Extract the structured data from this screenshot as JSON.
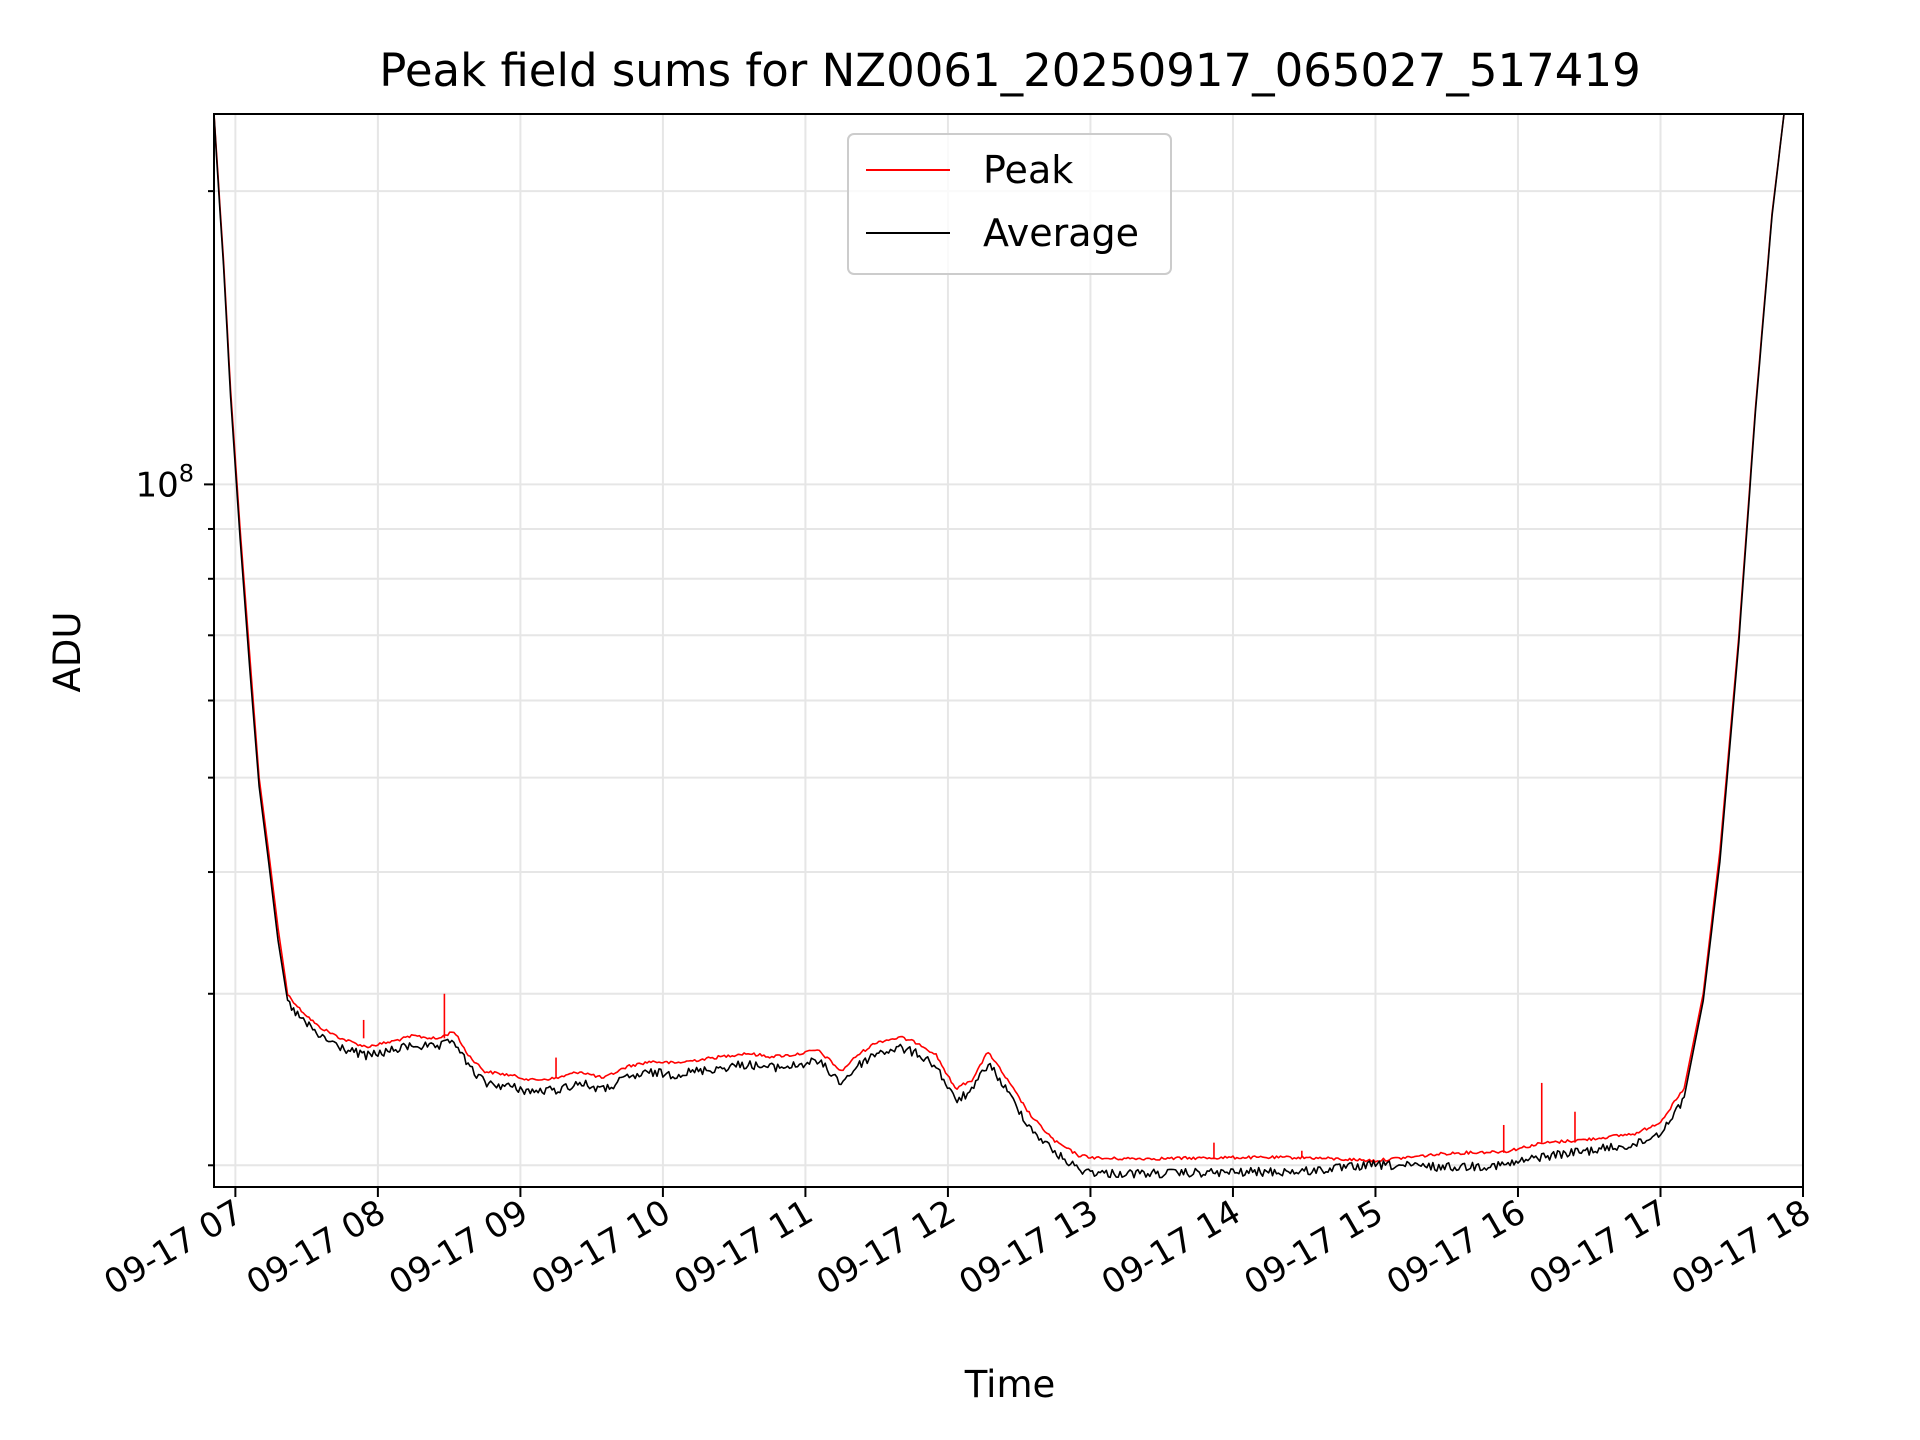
{
  "chart_data": {
    "type": "line",
    "title": "Peak field sums for NZ0061_20250917_065027_517419",
    "xlabel": "Time",
    "ylabel": "ADU",
    "yscale": "log",
    "grid": true,
    "legend_position": "top-center",
    "xlim": [
      "2025-09-17T06:51",
      "2025-09-17T18:00"
    ],
    "ylim": [
      19000000,
      240000000
    ],
    "x_ticks": [
      "09-17 07",
      "09-17 08",
      "09-17 09",
      "09-17 10",
      "09-17 11",
      "09-17 12",
      "09-17 13",
      "09-17 14",
      "09-17 15",
      "09-17 16",
      "09-17 17",
      "09-17 18"
    ],
    "y_ticks": [
      {
        "value": 100000000,
        "base": "10",
        "exponent": "8"
      }
    ],
    "series": [
      {
        "name": "Peak",
        "color": "#ff0000",
        "points": [
          [
            "2025-09-17T06:51",
            240000000
          ],
          [
            "2025-09-17T06:52",
            220000000
          ],
          [
            "2025-09-17T06:55",
            170000000
          ],
          [
            "2025-09-17T06:58",
            125000000
          ],
          [
            "2025-09-17T07:02",
            90000000
          ],
          [
            "2025-09-17T07:06",
            67000000
          ],
          [
            "2025-09-17T07:10",
            50000000
          ],
          [
            "2025-09-17T07:14",
            42000000
          ],
          [
            "2025-09-17T07:18",
            35000000
          ],
          [
            "2025-09-17T07:22",
            30000000
          ],
          [
            "2025-09-17T07:27",
            29000000
          ],
          [
            "2025-09-17T07:35",
            27800000
          ],
          [
            "2025-09-17T07:45",
            27000000
          ],
          [
            "2025-09-17T07:55",
            26500000
          ],
          [
            "2025-09-17T08:05",
            26800000
          ],
          [
            "2025-09-17T08:15",
            27200000
          ],
          [
            "2025-09-17T08:25",
            27000000
          ],
          [
            "2025-09-17T08:32",
            27500000
          ],
          [
            "2025-09-17T08:38",
            26000000
          ],
          [
            "2025-09-17T08:45",
            25000000
          ],
          [
            "2025-09-17T08:55",
            24800000
          ],
          [
            "2025-09-17T09:05",
            24500000
          ],
          [
            "2025-09-17T09:15",
            24600000
          ],
          [
            "2025-09-17T09:25",
            25000000
          ],
          [
            "2025-09-17T09:35",
            24600000
          ],
          [
            "2025-09-17T09:45",
            25300000
          ],
          [
            "2025-09-17T09:55",
            25600000
          ],
          [
            "2025-09-17T10:05",
            25500000
          ],
          [
            "2025-09-17T10:15",
            25700000
          ],
          [
            "2025-09-17T10:25",
            25900000
          ],
          [
            "2025-09-17T10:35",
            26100000
          ],
          [
            "2025-09-17T10:45",
            25900000
          ],
          [
            "2025-09-17T10:55",
            26000000
          ],
          [
            "2025-09-17T11:05",
            26300000
          ],
          [
            "2025-09-17T11:10",
            25700000
          ],
          [
            "2025-09-17T11:15",
            25000000
          ],
          [
            "2025-09-17T11:22",
            26000000
          ],
          [
            "2025-09-17T11:30",
            26800000
          ],
          [
            "2025-09-17T11:40",
            27100000
          ],
          [
            "2025-09-17T11:48",
            26700000
          ],
          [
            "2025-09-17T11:55",
            26000000
          ],
          [
            "2025-09-17T12:03",
            24000000
          ],
          [
            "2025-09-17T12:10",
            24500000
          ],
          [
            "2025-09-17T12:17",
            26200000
          ],
          [
            "2025-09-17T12:25",
            24500000
          ],
          [
            "2025-09-17T12:35",
            22500000
          ],
          [
            "2025-09-17T12:45",
            21200000
          ],
          [
            "2025-09-17T12:55",
            20500000
          ],
          [
            "2025-09-17T13:05",
            20350000
          ],
          [
            "2025-09-17T13:30",
            20350000
          ],
          [
            "2025-09-17T14:00",
            20400000
          ],
          [
            "2025-09-17T14:30",
            20400000
          ],
          [
            "2025-09-17T15:00",
            20250000
          ],
          [
            "2025-09-17T15:30",
            20600000
          ],
          [
            "2025-09-17T15:55",
            20700000
          ],
          [
            "2025-09-17T16:10",
            21100000
          ],
          [
            "2025-09-17T16:30",
            21300000
          ],
          [
            "2025-09-17T16:50",
            21600000
          ],
          [
            "2025-09-17T17:00",
            22200000
          ],
          [
            "2025-09-17T17:10",
            24000000
          ],
          [
            "2025-09-17T17:18",
            30000000
          ],
          [
            "2025-09-17T17:25",
            42000000
          ],
          [
            "2025-09-17T17:33",
            70000000
          ],
          [
            "2025-09-17T17:40",
            120000000
          ],
          [
            "2025-09-17T17:47",
            190000000
          ],
          [
            "2025-09-17T17:52",
            240000000
          ]
        ],
        "spikes": [
          [
            "2025-09-17T07:54",
            28200000
          ],
          [
            "2025-09-17T08:28",
            30000000
          ],
          [
            "2025-09-17T09:15",
            25800000
          ],
          [
            "2025-09-17T13:52",
            21100000
          ],
          [
            "2025-09-17T14:29",
            20700000
          ],
          [
            "2025-09-17T15:54",
            22000000
          ],
          [
            "2025-09-17T16:10",
            24300000
          ],
          [
            "2025-09-17T16:24",
            22700000
          ]
        ]
      },
      {
        "name": "Average",
        "color": "#000000",
        "points": [
          [
            "2025-09-17T06:51",
            240000000
          ],
          [
            "2025-09-17T06:52",
            218000000
          ],
          [
            "2025-09-17T06:55",
            168000000
          ],
          [
            "2025-09-17T06:58",
            123000000
          ],
          [
            "2025-09-17T07:02",
            88000000
          ],
          [
            "2025-09-17T07:06",
            65000000
          ],
          [
            "2025-09-17T07:10",
            49000000
          ],
          [
            "2025-09-17T07:14",
            41000000
          ],
          [
            "2025-09-17T07:18",
            34000000
          ],
          [
            "2025-09-17T07:22",
            29500000
          ],
          [
            "2025-09-17T07:27",
            28500000
          ],
          [
            "2025-09-17T07:35",
            27300000
          ],
          [
            "2025-09-17T07:45",
            26500000
          ],
          [
            "2025-09-17T07:55",
            26000000
          ],
          [
            "2025-09-17T08:05",
            26300000
          ],
          [
            "2025-09-17T08:15",
            26700000
          ],
          [
            "2025-09-17T08:25",
            26500000
          ],
          [
            "2025-09-17T08:32",
            27000000
          ],
          [
            "2025-09-17T08:38",
            25400000
          ],
          [
            "2025-09-17T08:45",
            24400000
          ],
          [
            "2025-09-17T08:55",
            24200000
          ],
          [
            "2025-09-17T09:05",
            23900000
          ],
          [
            "2025-09-17T09:15",
            24000000
          ],
          [
            "2025-09-17T09:25",
            24400000
          ],
          [
            "2025-09-17T09:35",
            24000000
          ],
          [
            "2025-09-17T09:45",
            24700000
          ],
          [
            "2025-09-17T09:55",
            25000000
          ],
          [
            "2025-09-17T10:05",
            24900000
          ],
          [
            "2025-09-17T10:15",
            25100000
          ],
          [
            "2025-09-17T10:25",
            25300000
          ],
          [
            "2025-09-17T10:35",
            25500000
          ],
          [
            "2025-09-17T10:45",
            25300000
          ],
          [
            "2025-09-17T10:55",
            25400000
          ],
          [
            "2025-09-17T11:05",
            25700000
          ],
          [
            "2025-09-17T11:10",
            25100000
          ],
          [
            "2025-09-17T11:15",
            24400000
          ],
          [
            "2025-09-17T11:22",
            25400000
          ],
          [
            "2025-09-17T11:30",
            26200000
          ],
          [
            "2025-09-17T11:40",
            26500000
          ],
          [
            "2025-09-17T11:48",
            26100000
          ],
          [
            "2025-09-17T11:55",
            25400000
          ],
          [
            "2025-09-17T12:03",
            23400000
          ],
          [
            "2025-09-17T12:10",
            23900000
          ],
          [
            "2025-09-17T12:17",
            25600000
          ],
          [
            "2025-09-17T12:25",
            23900000
          ],
          [
            "2025-09-17T12:35",
            21900000
          ],
          [
            "2025-09-17T12:45",
            20700000
          ],
          [
            "2025-09-17T12:55",
            19900000
          ],
          [
            "2025-09-17T13:05",
            19700000
          ],
          [
            "2025-09-17T13:30",
            19700000
          ],
          [
            "2025-09-17T14:00",
            19750000
          ],
          [
            "2025-09-17T14:30",
            19800000
          ],
          [
            "2025-09-17T15:00",
            20100000
          ],
          [
            "2025-09-17T15:30",
            20000000
          ],
          [
            "2025-09-17T15:55",
            20100000
          ],
          [
            "2025-09-17T16:10",
            20500000
          ],
          [
            "2025-09-17T16:30",
            20800000
          ],
          [
            "2025-09-17T16:50",
            21100000
          ],
          [
            "2025-09-17T17:00",
            21700000
          ],
          [
            "2025-09-17T17:10",
            23500000
          ],
          [
            "2025-09-17T17:18",
            29500000
          ],
          [
            "2025-09-17T17:25",
            41000000
          ],
          [
            "2025-09-17T17:33",
            69000000
          ],
          [
            "2025-09-17T17:40",
            119000000
          ],
          [
            "2025-09-17T17:47",
            189000000
          ],
          [
            "2025-09-17T17:52",
            240000000
          ]
        ]
      }
    ]
  }
}
